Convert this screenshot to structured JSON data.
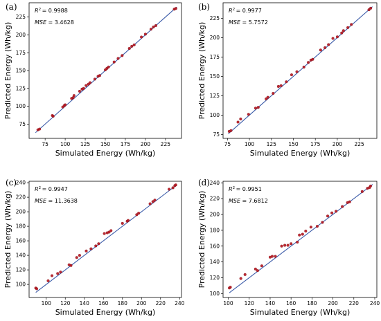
{
  "chart_data": [
    {
      "type": "scatter",
      "panel_label": "(a)",
      "xlabel": "Simulated Energy (Wh/kg)",
      "ylabel": "Predicted Energy (Wh/kg)",
      "xlim": [
        55,
        245
      ],
      "ylim": [
        55,
        245
      ],
      "xticks": [
        75,
        100,
        125,
        150,
        175,
        200,
        225
      ],
      "yticks": [
        75,
        100,
        125,
        150,
        175,
        200,
        225
      ],
      "stats": {
        "r2_label": "R",
        "r2_value": "= 0.9988",
        "mse_label": "MSE",
        "mse_value": "= 3.4628"
      },
      "fit_line": [
        [
          63,
          63
        ],
        [
          239,
          239
        ]
      ],
      "points": [
        [
          66,
          67
        ],
        [
          68,
          68
        ],
        [
          84,
          87
        ],
        [
          85,
          86
        ],
        [
          97,
          99
        ],
        [
          99,
          101
        ],
        [
          100,
          102
        ],
        [
          108,
          111
        ],
        [
          110,
          112
        ],
        [
          111,
          115
        ],
        [
          118,
          121
        ],
        [
          121,
          124
        ],
        [
          123,
          125
        ],
        [
          126,
          129
        ],
        [
          129,
          131
        ],
        [
          131,
          133
        ],
        [
          137,
          138
        ],
        [
          141,
          142
        ],
        [
          143,
          143
        ],
        [
          150,
          151
        ],
        [
          152,
          153
        ],
        [
          154,
          155
        ],
        [
          161,
          162
        ],
        [
          166,
          167
        ],
        [
          171,
          171
        ],
        [
          180,
          181
        ],
        [
          183,
          184
        ],
        [
          186,
          186
        ],
        [
          195,
          197
        ],
        [
          200,
          201
        ],
        [
          207,
          208
        ],
        [
          210,
          211
        ],
        [
          213,
          213
        ],
        [
          236,
          236
        ],
        [
          238,
          237
        ]
      ],
      "colors": {
        "line": "#3b5ba8",
        "points": "#b5141e"
      }
    },
    {
      "type": "scatter",
      "panel_label": "(b)",
      "xlabel": "Simulated Energy (Wh/kg)",
      "ylabel": "Predicted Energy (Wh/kg)",
      "xlim": [
        70,
        245
      ],
      "ylim": [
        70,
        245
      ],
      "xticks": [
        75,
        100,
        125,
        150,
        175,
        200,
        225
      ],
      "yticks": [
        75,
        100,
        125,
        150,
        175,
        200,
        225
      ],
      "stats": {
        "r2_label": "R",
        "r2_value": "= 0.9977",
        "mse_label": "MSE",
        "mse_value": "= 5.7572"
      },
      "fit_line": [
        [
          76,
          76
        ],
        [
          240,
          240
        ]
      ],
      "points": [
        [
          77,
          79
        ],
        [
          79,
          80
        ],
        [
          87,
          91
        ],
        [
          90,
          95
        ],
        [
          99,
          101
        ],
        [
          107,
          109
        ],
        [
          110,
          110
        ],
        [
          119,
          121
        ],
        [
          121,
          123
        ],
        [
          127,
          128
        ],
        [
          133,
          137
        ],
        [
          136,
          138
        ],
        [
          142,
          143
        ],
        [
          148,
          152
        ],
        [
          154,
          156
        ],
        [
          162,
          162
        ],
        [
          167,
          168
        ],
        [
          170,
          171
        ],
        [
          172,
          172
        ],
        [
          181,
          184
        ],
        [
          186,
          187
        ],
        [
          190,
          191
        ],
        [
          195,
          199
        ],
        [
          200,
          201
        ],
        [
          205,
          206
        ],
        [
          207,
          209
        ],
        [
          212,
          213
        ],
        [
          216,
          217
        ],
        [
          236,
          236
        ],
        [
          238,
          238
        ]
      ],
      "colors": {
        "line": "#3b5ba8",
        "points": "#b5141e"
      }
    },
    {
      "type": "scatter",
      "panel_label": "(c)",
      "xlabel": "Simulated Energy (Wh/kg)",
      "ylabel": "Predicted Energy (Wh/kg)",
      "xlim": [
        82,
        242
      ],
      "ylim": [
        82,
        242
      ],
      "xticks": [
        100,
        120,
        140,
        160,
        180,
        200,
        220,
        240
      ],
      "yticks": [
        100,
        120,
        140,
        160,
        180,
        200,
        220,
        240
      ],
      "stats": {
        "r2_label": "R",
        "r2_value": "= 0.9947",
        "mse_label": "MSE",
        "mse_value": "= 11.3638"
      },
      "fit_line": [
        [
          89,
          89
        ],
        [
          237,
          237
        ]
      ],
      "points": [
        [
          89,
          95
        ],
        [
          90,
          94
        ],
        [
          102,
          105
        ],
        [
          106,
          112
        ],
        [
          112,
          115
        ],
        [
          115,
          117
        ],
        [
          124,
          127
        ],
        [
          126,
          126
        ],
        [
          132,
          137
        ],
        [
          135,
          140
        ],
        [
          142,
          146
        ],
        [
          147,
          149
        ],
        [
          152,
          153
        ],
        [
          155,
          156
        ],
        [
          161,
          170
        ],
        [
          164,
          171
        ],
        [
          166,
          172
        ],
        [
          168,
          174
        ],
        [
          180,
          184
        ],
        [
          185,
          187
        ],
        [
          186,
          188
        ],
        [
          195,
          196
        ],
        [
          197,
          198
        ],
        [
          209,
          211
        ],
        [
          212,
          214
        ],
        [
          214,
          216
        ],
        [
          229,
          231
        ],
        [
          233,
          233
        ],
        [
          235,
          236
        ],
        [
          236,
          237
        ]
      ],
      "colors": {
        "line": "#3b5ba8",
        "points": "#b5141e"
      }
    },
    {
      "type": "scatter",
      "panel_label": "(d)",
      "xlabel": "Simulated Energy (Wh/kg)",
      "ylabel": "Predicted Energy (Wh/kg)",
      "xlim": [
        95,
        242
      ],
      "ylim": [
        95,
        242
      ],
      "xticks": [
        100,
        120,
        140,
        160,
        180,
        200,
        220,
        240
      ],
      "yticks": [
        100,
        120,
        140,
        160,
        180,
        200,
        220,
        240
      ],
      "stats": {
        "r2_label": "R",
        "r2_value": "= 0.9951",
        "mse_label": "MSE",
        "mse_value": "= 7.6812"
      },
      "fit_line": [
        [
          101,
          101
        ],
        [
          238,
          238
        ]
      ],
      "points": [
        [
          101,
          107
        ],
        [
          102,
          108
        ],
        [
          112,
          119
        ],
        [
          116,
          124
        ],
        [
          126,
          131
        ],
        [
          128,
          129
        ],
        [
          132,
          135
        ],
        [
          140,
          146
        ],
        [
          142,
          147
        ],
        [
          145,
          147
        ],
        [
          151,
          160
        ],
        [
          154,
          161
        ],
        [
          157,
          161
        ],
        [
          160,
          163
        ],
        [
          166,
          165
        ],
        [
          168,
          174
        ],
        [
          171,
          175
        ],
        [
          174,
          179
        ],
        [
          179,
          184
        ],
        [
          185,
          185
        ],
        [
          190,
          190
        ],
        [
          195,
          198
        ],
        [
          199,
          202
        ],
        [
          203,
          204
        ],
        [
          209,
          210
        ],
        [
          214,
          215
        ],
        [
          216,
          216
        ],
        [
          228,
          229
        ],
        [
          233,
          233
        ],
        [
          235,
          234
        ],
        [
          236,
          236
        ]
      ],
      "colors": {
        "line": "#3b5ba8",
        "points": "#b5141e"
      }
    }
  ]
}
